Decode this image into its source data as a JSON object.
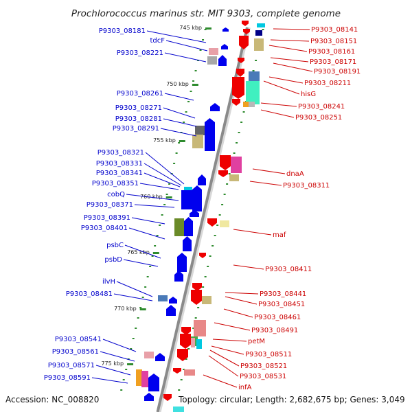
{
  "title": "Prochlorococcus marinus str. MIT 9303, complete genome",
  "accession": "Accession: NC_008820",
  "topology": "Topology: circular; Length: 2,682,675 bp; Genes: 3,049",
  "colors": {
    "left_label": "#0000cc",
    "right_label": "#cc0000",
    "backbone": "#8a8a8a",
    "tick_dot": "#2e8b2e",
    "ppt_blue": "#0000ee",
    "ppt_red": "#ee0000"
  },
  "ticks": [
    "745 kbp",
    "750 kbp",
    "755 kbp",
    "760 kbp",
    "765 kbp",
    "770 kbp",
    "775 kbp"
  ],
  "left_genes": [
    "P9303_08181",
    "tdcF",
    "P9303_08221",
    "P9303_08261",
    "P9303_08271",
    "P9303_08281",
    "P9303_08291",
    "P9303_08321",
    "P9303_08331",
    "P9303_08341",
    "P9303_08351",
    "cobQ",
    "P9303_08371",
    "P9303_08391",
    "P9303_08401",
    "psbC",
    "psbD",
    "ilvH",
    "P9303_08481",
    "P9303_08541",
    "P9303_08561",
    "P9303_08571",
    "P9303_08591"
  ],
  "right_genes": [
    "P9303_08141",
    "P9303_08151",
    "P9303_08161",
    "P9303_08171",
    "P9303_08191",
    "P9303_08211",
    "hisG",
    "P9303_08241",
    "P9303_08251",
    "dnaA",
    "P9303_08311",
    "maf",
    "P9303_08411",
    "P9303_08441",
    "P9303_08451",
    "P9303_08461",
    "P9303_08491",
    "petM",
    "P9303_08511",
    "P9303_08521",
    "P9303_08531",
    "infA"
  ]
}
